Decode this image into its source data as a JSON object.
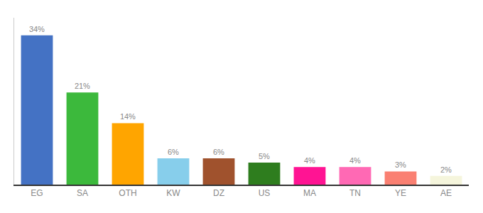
{
  "chart_data": {
    "type": "bar",
    "categories": [
      "EG",
      "SA",
      "OTH",
      "KW",
      "DZ",
      "US",
      "MA",
      "TN",
      "YE",
      "AE"
    ],
    "values": [
      34,
      21,
      14,
      6,
      6,
      5,
      4,
      4,
      3,
      2
    ],
    "value_labels": [
      "34%",
      "21%",
      "14%",
      "6%",
      "6%",
      "5%",
      "4%",
      "4%",
      "3%",
      "2%"
    ],
    "colors": [
      "#4472C4",
      "#3CB93C",
      "#FFA500",
      "#87CEEB",
      "#A0522D",
      "#2E7D1E",
      "#FF1493",
      "#FF69B4",
      "#FA8072",
      "#F5F5DC"
    ],
    "ylim": [
      0,
      38
    ],
    "yticks": [],
    "grid": false,
    "data_labels": true,
    "tick_labels": "x"
  }
}
